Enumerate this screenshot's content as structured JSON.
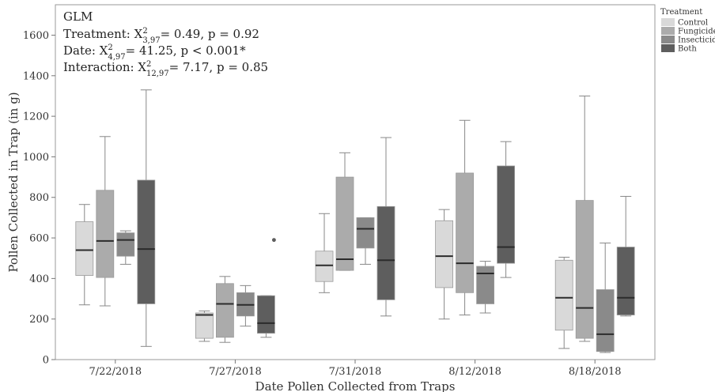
{
  "chart_data": {
    "type": "boxplot",
    "xlabel": "Date Pollen Collected from Traps",
    "ylabel": "Pollen Collected in Trap (in g)",
    "ylim": [
      0,
      1750
    ],
    "yticks": [
      0,
      200,
      400,
      600,
      800,
      1000,
      1200,
      1400,
      1600
    ],
    "categories": [
      "7/22/2018",
      "7/27/2018",
      "7/31/2018",
      "8/12/2018",
      "8/18/2018"
    ],
    "grid": false,
    "legend_position": "top-right",
    "legend": {
      "title": "Treatment",
      "entries": [
        "Control",
        "Fungicide",
        "Insecticide",
        "Both"
      ]
    },
    "colors": {
      "Control": "#d9d9d9",
      "Fungicide": "#ababab",
      "Insecticide": "#8a8a8a",
      "Both": "#5e5e5e"
    },
    "annotation": {
      "title": "GLM",
      "lines": [
        {
          "label": "Treatment: X",
          "sup": "2",
          "sub": "3,97",
          "rest": "= 0.49, p = 0.92"
        },
        {
          "label": "Date: X",
          "sup": "2",
          "sub": "4,97",
          "rest": "= 41.25, p < 0.001*"
        },
        {
          "label": "Interaction: X",
          "sup": "2",
          "sub": "12,97",
          "rest": "= 7.17, p = 0.85"
        }
      ]
    },
    "series": [
      {
        "name": "Control",
        "boxes": [
          {
            "min": 270,
            "q1": 415,
            "median": 540,
            "q3": 680,
            "max": 765
          },
          {
            "min": 90,
            "q1": 105,
            "median": 220,
            "q3": 230,
            "max": 240
          },
          {
            "min": 330,
            "q1": 385,
            "median": 465,
            "q3": 535,
            "max": 720
          },
          {
            "min": 200,
            "q1": 355,
            "median": 510,
            "q3": 685,
            "max": 740
          },
          {
            "min": 55,
            "q1": 145,
            "median": 305,
            "q3": 490,
            "max": 505
          }
        ]
      },
      {
        "name": "Fungicide",
        "boxes": [
          {
            "min": 265,
            "q1": 405,
            "median": 585,
            "q3": 835,
            "max": 1100
          },
          {
            "min": 85,
            "q1": 110,
            "median": 275,
            "q3": 375,
            "max": 410
          },
          {
            "min": 440,
            "q1": 440,
            "median": 495,
            "q3": 900,
            "max": 1020
          },
          {
            "min": 220,
            "q1": 330,
            "median": 475,
            "q3": 920,
            "max": 1180
          },
          {
            "min": 90,
            "q1": 105,
            "median": 255,
            "q3": 785,
            "max": 1300
          }
        ]
      },
      {
        "name": "Insecticide",
        "boxes": [
          {
            "min": 470,
            "q1": 510,
            "median": 590,
            "q3": 625,
            "max": 635
          },
          {
            "min": 165,
            "q1": 215,
            "median": 270,
            "q3": 330,
            "max": 365
          },
          {
            "min": 470,
            "q1": 550,
            "median": 645,
            "q3": 700,
            "max": 700
          },
          {
            "min": 230,
            "q1": 275,
            "median": 425,
            "q3": 460,
            "max": 485
          },
          {
            "min": 35,
            "q1": 40,
            "median": 125,
            "q3": 345,
            "max": 575
          }
        ]
      },
      {
        "name": "Both",
        "boxes": [
          {
            "min": 65,
            "q1": 275,
            "median": 545,
            "q3": 885,
            "max": 1330
          },
          {
            "min": 110,
            "q1": 130,
            "median": 180,
            "q3": 315,
            "max": 315,
            "outliers": [
              590
            ]
          },
          {
            "min": 215,
            "q1": 295,
            "median": 490,
            "q3": 755,
            "max": 1095
          },
          {
            "min": 405,
            "q1": 475,
            "median": 555,
            "q3": 955,
            "max": 1075
          },
          {
            "min": 215,
            "q1": 220,
            "median": 305,
            "q3": 555,
            "max": 805
          }
        ]
      }
    ]
  }
}
